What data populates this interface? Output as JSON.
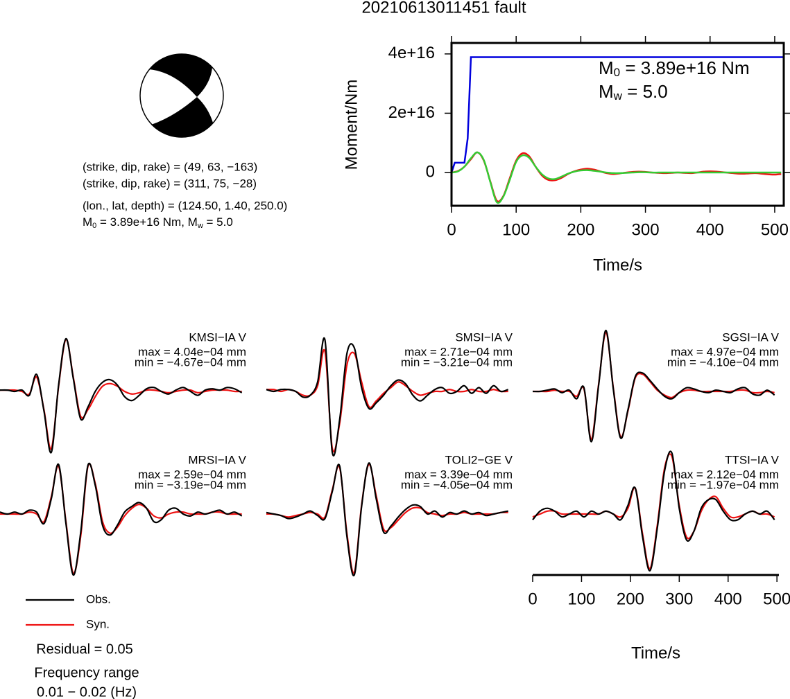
{
  "title": "20210613011451 fault",
  "mechanism": {
    "lines": [
      "(strike, dip, rake) = (49, 63, −163)",
      "(strike, dip, rake) = (311, 75, −28)",
      "(lon., lat, depth) = (124.50, 1.40, 250.0)"
    ],
    "moment_line": {
      "m": "M",
      "m_sub": "0",
      "m_rest": " = 3.89e+16 Nm, ",
      "w": "M",
      "w_sub": "w",
      "w_rest": " = 5.0"
    }
  },
  "residual": "Residual = 0.05",
  "frequency": [
    "Frequency range",
    "0.01 − 0.02 (Hz)"
  ],
  "chart_data": [
    {
      "type": "line",
      "ylabel": "Moment/Nm",
      "xlabel": "Time/s",
      "xlim": [
        0,
        514
      ],
      "xticks": [
        0,
        100,
        200,
        300,
        400,
        500
      ],
      "ylim": [
        -1.12e+16,
        4.37e+16
      ],
      "yticks": [
        {
          "value": 0,
          "label": "0"
        },
        {
          "value": 2e+16,
          "label": "2e+16"
        },
        {
          "value": 4e+16,
          "label": "4e+16"
        }
      ],
      "annotations": [
        {
          "main": "M",
          "sub": "0",
          "rest": " = 3.89e+16 Nm"
        },
        {
          "main": "M",
          "sub": "w",
          "rest": " = 5.0"
        }
      ],
      "series": [
        {
          "color": "#0000dd",
          "smooth": false,
          "x": [
            0,
            5,
            20,
            25,
            30,
            514
          ],
          "values": [
            0,
            3300000000000000.0,
            3300000000000000.0,
            1.15e+16,
            3.89e+16,
            3.89e+16
          ]
        },
        {
          "color": "#ee1111",
          "smooth": true,
          "x": [
            0,
            10,
            20,
            30,
            40,
            50,
            60,
            70,
            80,
            90,
            100,
            110,
            120,
            130,
            140,
            150,
            160,
            170,
            180,
            190,
            200,
            210,
            220,
            230,
            240,
            250,
            260,
            270,
            280,
            290,
            300,
            310,
            320,
            330,
            340,
            350,
            360,
            370,
            380,
            390,
            400,
            410,
            420,
            430,
            440,
            450,
            460,
            470,
            480,
            490,
            500,
            510
          ],
          "values": [
            0,
            500000000000000.0,
            2000000000000000.0,
            4500000000000000.0,
            6800000000000000.0,
            4000000000000000.0,
            -3000000000000000.0,
            -9500000000000000.0,
            -8000000000000000.0,
            -2000000000000000.0,
            4000000000000000.0,
            6500000000000000.0,
            5500000000000000.0,
            2000000000000000.0,
            -1000000000000000.0,
            -2500000000000000.0,
            -2600000000000000.0,
            -1800000000000000.0,
            -500000000000000.0,
            400000000000000.0,
            1000000000000000.0,
            1300000000000000.0,
            1000000000000000.0,
            400000000000000.0,
            -200000000000000.0,
            -500000000000000.0,
            -300000000000000.0,
            0,
            200000000000000.0,
            300000000000000.0,
            200000000000000.0,
            0,
            -100000000000000.0,
            -200000000000000.0,
            -100000000000000.0,
            0,
            -100000000000000.0,
            -200000000000000.0,
            0,
            300000000000000.0,
            400000000000000.0,
            300000000000000.0,
            100000000000000.0,
            -100000000000000.0,
            -300000000000000.0,
            -400000000000000.0,
            -300000000000000.0,
            -200000000000000.0,
            -400000000000000.0,
            -600000000000000.0,
            -700000000000000.0,
            -500000000000000.0
          ]
        },
        {
          "color": "#33cc33",
          "smooth": true,
          "x": [
            0,
            10,
            20,
            30,
            40,
            50,
            60,
            70,
            80,
            90,
            100,
            110,
            120,
            130,
            140,
            150,
            160,
            170,
            180,
            190,
            200,
            210,
            220,
            230,
            240,
            250,
            260,
            270,
            280,
            290,
            300,
            310,
            320,
            330,
            340,
            350,
            360,
            370,
            380,
            390,
            400,
            410,
            420,
            430,
            440,
            450,
            460,
            470,
            480,
            490,
            500,
            510
          ],
          "values": [
            0,
            400000000000000.0,
            2000000000000000.0,
            4800000000000000.0,
            6800000000000000.0,
            4200000000000000.0,
            -3200000000000000.0,
            -1e+16,
            -8200000000000000.0,
            -2500000000000000.0,
            3600000000000000.0,
            5800000000000000.0,
            5000000000000000.0,
            2000000000000000.0,
            -600000000000000.0,
            -2000000000000000.0,
            -2200000000000000.0,
            -1400000000000000.0,
            -400000000000000.0,
            300000000000000.0,
            700000000000000.0,
            800000000000000.0,
            600000000000000.0,
            300000000000000.0,
            0,
            -200000000000000.0,
            -200000000000000.0,
            -100000000000000.0,
            0,
            100000000000000.0,
            100000000000000.0,
            0,
            0,
            0,
            0,
            0,
            0,
            0,
            0,
            0,
            0,
            0,
            0,
            0,
            0,
            0,
            0,
            0,
            0,
            0,
            0,
            0
          ]
        }
      ]
    },
    {
      "type": "waveforms",
      "xlabel": "Time/s",
      "xlim": [
        0,
        504
      ],
      "xticks": [
        0,
        100,
        200,
        300,
        400,
        500
      ],
      "legend": [
        {
          "name": "Obs.",
          "color": "#000000"
        },
        {
          "name": "Syn.",
          "color": "#ee1111"
        }
      ],
      "x": [
        0,
        15,
        30,
        45,
        60,
        75,
        90,
        105,
        120,
        135,
        150,
        165,
        180,
        195,
        210,
        225,
        240,
        255,
        270,
        285,
        300,
        315,
        330,
        345,
        360,
        375,
        390,
        405,
        420,
        435,
        450,
        465,
        480,
        495
      ],
      "panels": [
        {
          "label": "KMSI−IA V",
          "max_label": "max = 4.04e−04 mm",
          "min_label": "min = −4.67e−04 mm",
          "series": [
            {
              "values": [
                1e-05,
                1e-05,
                0,
                1e-05,
                -3e-05,
                0.00013,
                -0.00015,
                -0.000467,
                5e-05,
                0.000404,
                0.0001,
                -0.00021,
                -0.00012,
                0,
                7e-05,
                9e-05,
                5e-05,
                -4e-05,
                -7e-05,
                -3e-05,
                2e-05,
                3e-05,
                0,
                -2e-05,
                1e-05,
                3e-05,
                0,
                -3e-05,
                1e-05,
                2e-05,
                1e-05,
                3e-05,
                2e-05,
                -1e-05
              ]
            },
            {
              "values": [
                1e-05,
                1e-05,
                1e-05,
                0,
                -2e-05,
                0.00011,
                -0.00014,
                -0.00044,
                4e-05,
                0.0004,
                0.00011,
                -0.00019,
                -0.00014,
                -4e-05,
                4e-05,
                6e-05,
                4e-05,
                0,
                -2e-05,
                -1e-05,
                1e-05,
                1e-05,
                0,
                -1e-05,
                0,
                1e-05,
                1e-05,
                -1e-05,
                0,
                1e-05,
                1e-05,
                1e-05,
                0,
                0
              ]
            }
          ]
        },
        {
          "label": "SMSI−IA V",
          "max_label": "max = 2.71e−04 mm",
          "min_label": "min = −3.21e−04 mm",
          "series": [
            {
              "values": [
                1e-05,
                0,
                1e-05,
                1e-05,
                0,
                -3e-05,
                -2e-05,
                5e-05,
                0.000271,
                -0.000321,
                -0.00015,
                0.0002,
                0.00023,
                2e-05,
                -9e-05,
                -6e-05,
                -2e-05,
                3e-05,
                6e-05,
                4e-05,
                -2e-05,
                -5e-05,
                -2e-05,
                1e-05,
                2e-05,
                -1e-05,
                0,
                3e-05,
                -1e-05,
                2e-05,
                -1e-05,
                3e-05,
                0,
                1e-05
              ]
            },
            {
              "values": [
                1e-05,
                1e-05,
                0,
                1e-05,
                0,
                -2e-05,
                -2e-05,
                3e-05,
                0.00021,
                -0.0003,
                -0.00017,
                0.00014,
                0.0002,
                5e-05,
                -8e-05,
                -5e-05,
                -1e-05,
                2e-05,
                5e-05,
                3e-05,
                0,
                -2e-05,
                -1e-05,
                0,
                0,
                1e-05,
                0,
                0,
                1e-05,
                0,
                0,
                1e-05,
                0,
                0
              ]
            }
          ]
        },
        {
          "label": "SGSI−IA V",
          "max_label": "max = 4.97e−04 mm",
          "min_label": "min = −4.10e−04 mm",
          "series": [
            {
              "values": [
                0,
                0,
                1e-05,
                2e-05,
                -1e-05,
                1e-05,
                -6e-05,
                3e-05,
                -0.00041,
                5e-05,
                0.000497,
                2e-05,
                -0.00038,
                -0.00015,
                0.00012,
                0.00015,
                9e-05,
                2e-05,
                -4e-05,
                -6e-05,
                -1e-05,
                3e-05,
                2e-05,
                0,
                -1e-05,
                1e-05,
                0,
                -1e-05,
                2e-05,
                3e-05,
                -2e-05,
                -3e-05,
                1e-05,
                -3e-05
              ]
            },
            {
              "values": [
                0,
                0,
                0,
                1e-05,
                0,
                0,
                -4e-05,
                2e-05,
                -0.00039,
                6e-05,
                0.00048,
                3e-05,
                -0.00037,
                -0.00016,
                0.00011,
                0.00014,
                8e-05,
                1e-05,
                -3e-05,
                -5e-05,
                -1e-05,
                1e-05,
                1e-05,
                0,
                0,
                0,
                0,
                0,
                1e-05,
                1e-05,
                -1e-05,
                -1e-05,
                0,
                -1e-05
              ]
            }
          ]
        },
        {
          "label": "MRSI−IA V",
          "max_label": "max = 2.59e−04 mm",
          "min_label": "min = −3.19e−04 mm",
          "series": [
            {
              "values": [
                1e-05,
                0,
                1e-05,
                0,
                2e-05,
                1e-05,
                -5e-05,
                8e-05,
                0.000259,
                -5e-05,
                -0.000319,
                -0.0001,
                0.000255,
                0.00015,
                -6e-05,
                -0.00011,
                -6e-05,
                1e-05,
                4e-05,
                6e-05,
                3e-05,
                -4e-05,
                -3e-05,
                2e-05,
                3e-05,
                0,
                -1e-05,
                1e-05,
                0,
                1e-05,
                2e-05,
                0,
                1e-05,
                -1e-05
              ]
            },
            {
              "values": [
                0,
                0,
                0,
                0,
                1e-05,
                0,
                -4e-05,
                9e-05,
                0.00025,
                -4e-05,
                -0.00031,
                -0.00012,
                0.00025,
                0.00016,
                -4e-05,
                -0.0001,
                -7e-05,
                -1e-05,
                3e-05,
                5e-05,
                3e-05,
                -1e-05,
                -2e-05,
                0,
                1e-05,
                1e-05,
                0,
                0,
                0,
                1e-05,
                1e-05,
                0,
                0,
                0
              ]
            }
          ]
        },
        {
          "label": "TOLI2−GE V",
          "max_label": "max = 3.39e−04 mm",
          "min_label": "min = −4.05e−04 mm",
          "series": [
            {
              "values": [
                1e-05,
                0,
                -1e-05,
                -3e-05,
                -2e-05,
                0,
                2e-05,
                -1e-05,
                -3e-05,
                0.00015,
                0.00032,
                -0.00015,
                -0.000405,
                5e-05,
                0.000339,
                0.0001,
                -0.00012,
                -8e-05,
                -2e-05,
                3e-05,
                6e-05,
                5e-05,
                0,
                2e-05,
                -2e-05,
                1e-05,
                0,
                2e-05,
                0,
                1e-05,
                -1e-05,
                0,
                1e-05,
                2e-05
              ]
            },
            {
              "values": [
                0,
                0,
                -1e-05,
                -2e-05,
                -1e-05,
                0,
                1e-05,
                0,
                -2e-05,
                0.00016,
                0.00031,
                -0.00013,
                -0.00039,
                6e-05,
                0.00033,
                0.00012,
                -0.0001,
                -9e-05,
                -4e-05,
                1e-05,
                4e-05,
                4e-05,
                1e-05,
                0,
                -1e-05,
                0,
                0,
                1e-05,
                0,
                0,
                0,
                0,
                1e-05,
                1e-05
              ]
            }
          ]
        },
        {
          "label": "TTSI−IA V",
          "max_label": "max = 2.12e−04 mm",
          "min_label": "min = −1.97e−04 mm",
          "series": [
            {
              "values": [
                -2e-05,
                1e-05,
                2e-05,
                1e-05,
                -1e-05,
                0,
                1e-05,
                -1e-05,
                1e-05,
                0,
                1e-05,
                0,
                -2e-05,
                3e-05,
                9e-05,
                -8e-05,
                -0.000197,
                -5e-05,
                0.00015,
                0.000212,
                2e-05,
                -9e-05,
                -6e-05,
                2e-05,
                5e-05,
                5e-05,
                1e-05,
                -2e-05,
                -2e-05,
                0,
                1e-05,
                0,
                1e-05,
                -2e-05
              ]
            },
            {
              "values": [
                -1e-05,
                0,
                1e-05,
                1e-05,
                0,
                0,
                0,
                0,
                0,
                0,
                1e-05,
                0,
                -1e-05,
                2e-05,
                9e-05,
                -7e-05,
                -0.00019,
                -4e-05,
                0.00016,
                0.0002,
                3e-05,
                -8e-05,
                -6e-05,
                1e-05,
                5e-05,
                6e-05,
                2e-05,
                -1e-05,
                -1e-05,
                0,
                1e-05,
                0,
                0,
                -1e-05
              ]
            }
          ]
        }
      ]
    }
  ]
}
